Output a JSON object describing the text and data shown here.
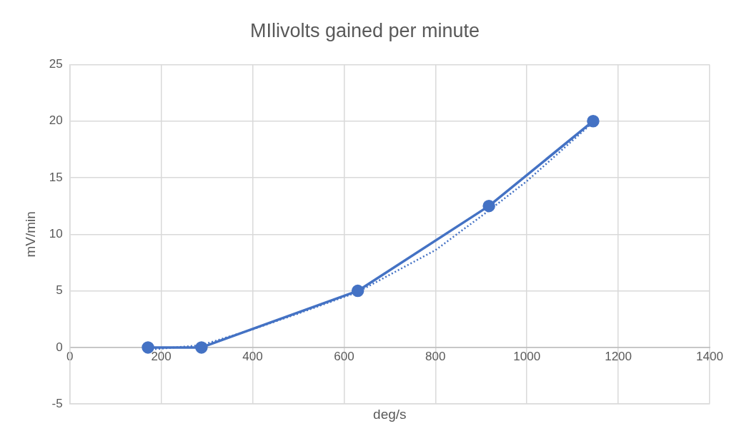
{
  "chart_data": {
    "type": "scatter",
    "title": "MIlivolts gained per minute",
    "xlabel": "deg/s",
    "ylabel": "mV/min",
    "series": [
      {
        "type": "line",
        "color": "#4472c4",
        "marker": "circle",
        "line_style": "solid",
        "x": [
          171,
          288,
          630,
          917,
          1145
        ],
        "values": [
          0,
          0,
          5,
          12.5,
          20
        ]
      },
      {
        "type": "line",
        "color": "#4472c4",
        "marker": "none",
        "line_style": "dotted",
        "x": [
          171,
          288,
          400,
          500,
          630,
          800,
          917,
          1000,
          1145
        ],
        "values": [
          -0.2,
          0.2,
          1.6,
          3.0,
          4.9,
          8.6,
          12.1,
          14.7,
          19.9
        ]
      }
    ],
    "xlim": [
      0,
      1400
    ],
    "xticks": [
      0,
      200,
      400,
      600,
      800,
      1000,
      1200,
      1400
    ],
    "ylim": [
      -5,
      25
    ],
    "yticks": [
      -5,
      0,
      5,
      10,
      15,
      20,
      25
    ],
    "grid": true,
    "legend": false
  }
}
